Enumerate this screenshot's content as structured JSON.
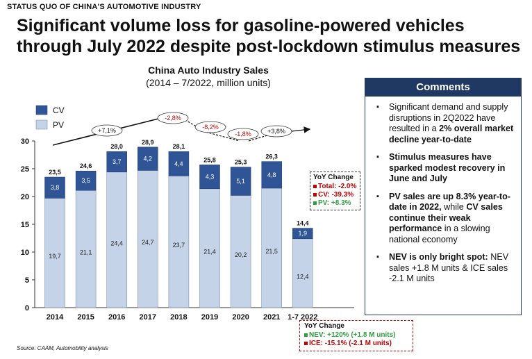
{
  "header": {
    "eyebrow": "STATUS QUO OF CHINA'S AUTOMOTIVE INDUSTRY",
    "title": "Significant volume loss for gasoline-powered vehicles through July 2022 despite post-lockdown stimulus measures"
  },
  "chart_data": {
    "type": "bar",
    "stacked": true,
    "title": "China Auto Industry Sales",
    "subtitle": "(2014 – 7/2022, million units)",
    "categories": [
      "2014",
      "2015",
      "2016",
      "2017",
      "2018",
      "2019",
      "2020",
      "2021",
      "1-7 2022"
    ],
    "series": [
      {
        "name": "PV",
        "color": "#c5d3e8",
        "values": [
          19.7,
          21.1,
          24.4,
          24.7,
          23.7,
          21.4,
          20.2,
          21.5,
          12.4
        ],
        "labels": [
          "19,7",
          "21,1",
          "24,4",
          "24,7",
          "23,7",
          "21,4",
          "20,2",
          "21,5",
          "12,4"
        ]
      },
      {
        "name": "CV",
        "color": "#2f5597",
        "values": [
          3.8,
          3.5,
          3.7,
          4.2,
          4.4,
          4.3,
          5.1,
          4.8,
          1.9
        ],
        "labels": [
          "3,8",
          "3,5",
          "3,7",
          "4,2",
          "4,4",
          "4,3",
          "5,1",
          "4,8",
          "1,9"
        ]
      }
    ],
    "totals": [
      "23,5",
      "24,6",
      "28,0",
      "28,9",
      "28,1",
      "25,8",
      "25,3",
      "26,3",
      "14,4"
    ],
    "ylim": [
      0,
      30
    ],
    "yticks": [
      "0",
      "5",
      "10",
      "15",
      "20",
      "25",
      "30"
    ],
    "legend": "top-left",
    "growth_annotations": [
      {
        "text": "+7,1%",
        "color": "#111111"
      },
      {
        "text": "-2,8%",
        "color": "#c00000"
      },
      {
        "text": "-8,2%",
        "color": "#c00000"
      },
      {
        "text": "-1,8%",
        "color": "#c00000"
      },
      {
        "text": "+3,8%",
        "color": "#111111"
      }
    ]
  },
  "yoy_box_1": {
    "title": "YoY Change",
    "total": "Total: -2.0%",
    "cv": "CV: -39.3%",
    "pv": "PV: +8.3%"
  },
  "yoy_box_2": {
    "title": "YoY Change",
    "nev": "NEV: +120% (+1.8 M units)",
    "ice": "ICE: -15.1% (-2.1 M units)"
  },
  "comments": {
    "title": "Comments",
    "items": [
      [
        {
          "t": "Significant demand and supply disruptions in 2Q2022 have resulted in a ",
          "b": false
        },
        {
          "t": "2% overall market decline year-to-date",
          "b": true
        }
      ],
      [
        {
          "t": "Stimulus measures have sparked modest recovery in June and July",
          "b": true
        }
      ],
      [
        {
          "t": "PV sales are up 8.3% year-to-date in 2022,",
          "b": true
        },
        {
          "t": " while ",
          "b": false
        },
        {
          "t": "CV sales continue their weak performance",
          "b": true
        },
        {
          "t": " in a slowing national economy",
          "b": false
        }
      ],
      [
        {
          "t": "NEV is only bright spot:",
          "b": true
        },
        {
          "t": " NEV sales +1.8 M units & ICE sales -2.1 M units",
          "b": false
        }
      ]
    ]
  },
  "source": "Source: CAAM, Automobility analysis"
}
